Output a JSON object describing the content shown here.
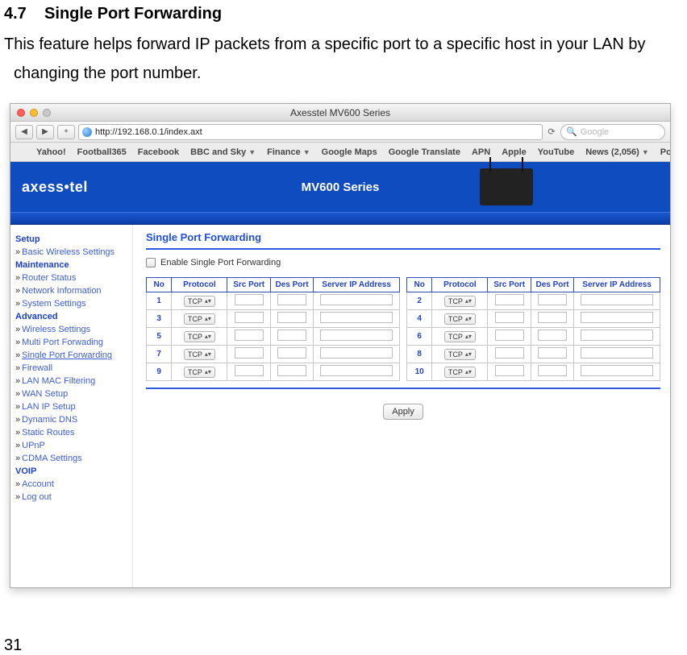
{
  "section_number": "4.7",
  "section_title": "Single Port Forwarding",
  "intro_line1": "This feature helps forward IP packets from a specific port to a specific host in your LAN by",
  "intro_line2": "changing the port number.",
  "page_number": "31",
  "window": {
    "title": "Axesstel MV600 Series",
    "url": "http://192.168.0.1/index.axt",
    "search_placeholder": "Google"
  },
  "bookmarks": [
    "Yahoo!",
    "Football365",
    "Facebook",
    "BBC and Sky",
    "Finance",
    "Google Maps",
    "Google Translate",
    "APN",
    "Apple",
    "YouTube",
    "News (2,056)",
    "Popular"
  ],
  "bookmarks_dropdown_flags": [
    false,
    false,
    false,
    true,
    true,
    false,
    false,
    false,
    false,
    false,
    true,
    true
  ],
  "banner": {
    "brand": "axess•tel",
    "series": "MV600 Series"
  },
  "sidebar": [
    {
      "type": "head",
      "label": "Setup"
    },
    {
      "type": "item",
      "label": "Basic Wireless Settings"
    },
    {
      "type": "head",
      "label": "Maintenance"
    },
    {
      "type": "item",
      "label": "Router Status"
    },
    {
      "type": "item",
      "label": "Network Information"
    },
    {
      "type": "item",
      "label": "System Settings"
    },
    {
      "type": "head",
      "label": "Advanced"
    },
    {
      "type": "item",
      "label": "Wireless Settings"
    },
    {
      "type": "item",
      "label": "Multi Port Forwading"
    },
    {
      "type": "item",
      "label": "Single Port Forwarding",
      "current": true
    },
    {
      "type": "item",
      "label": "Firewall"
    },
    {
      "type": "item",
      "label": "LAN MAC Filtering"
    },
    {
      "type": "item",
      "label": "WAN Setup"
    },
    {
      "type": "item",
      "label": "LAN IP Setup"
    },
    {
      "type": "item",
      "label": "Dynamic DNS"
    },
    {
      "type": "item",
      "label": "Static Routes"
    },
    {
      "type": "item",
      "label": "UPnP"
    },
    {
      "type": "item",
      "label": "CDMA Settings"
    },
    {
      "type": "head",
      "label": "VOIP"
    },
    {
      "type": "item",
      "label": "Account"
    },
    {
      "type": "item",
      "label": "Log out"
    }
  ],
  "content": {
    "title": "Single Port Forwarding",
    "enable_label": "Enable Single Port Forwarding",
    "columns": [
      "No",
      "Protocol",
      "Src Port",
      "Des Port",
      "Server IP Address"
    ],
    "protocol_value": "TCP",
    "left_rows": [
      1,
      3,
      5,
      7,
      9
    ],
    "right_rows": [
      2,
      4,
      6,
      8,
      10
    ],
    "apply_label": "Apply"
  },
  "colors": {
    "banner_bg": "#0f4cc0",
    "link": "#3b5dd9",
    "head": "#1a3fd0",
    "table_border": "#314fb8"
  }
}
